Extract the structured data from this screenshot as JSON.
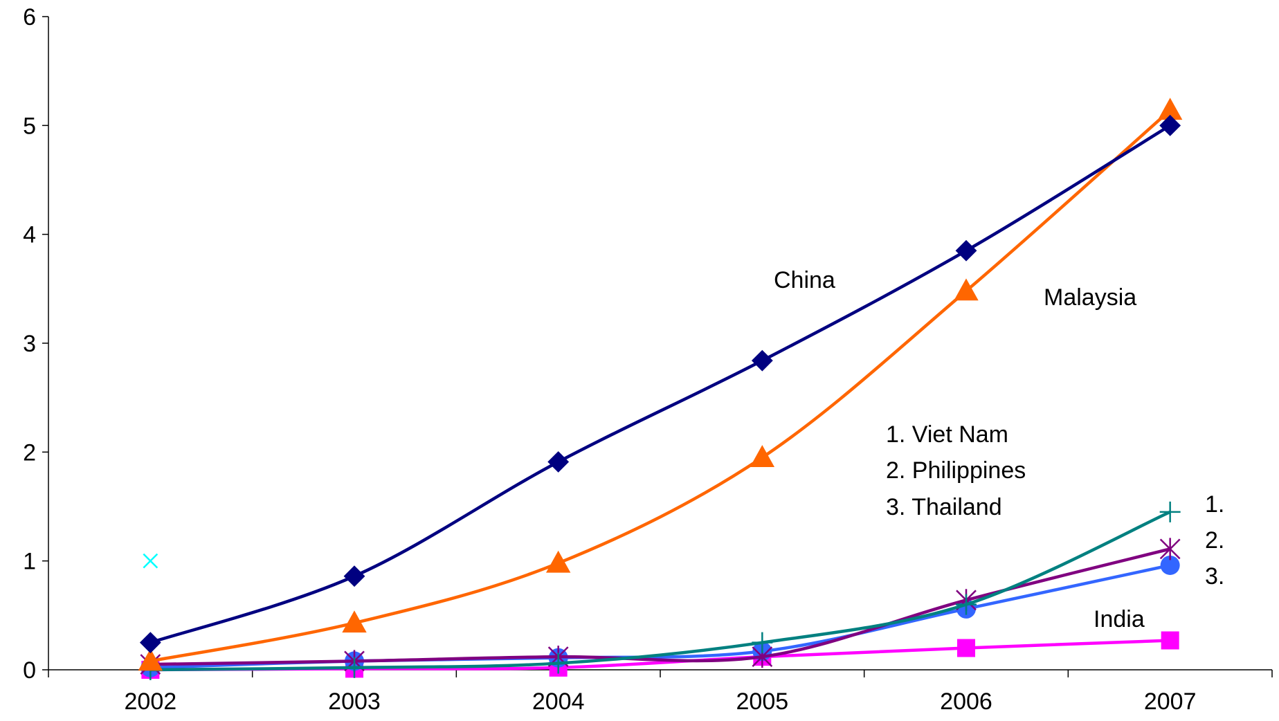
{
  "chart_data": {
    "type": "line",
    "title": "",
    "xlabel": "",
    "ylabel": "",
    "categories": [
      "2002",
      "2003",
      "2004",
      "2005",
      "2006",
      "2007"
    ],
    "ylim": [
      0,
      6
    ],
    "yticks": [
      "0",
      "1",
      "2",
      "3",
      "4",
      "5",
      "6"
    ],
    "grid": false,
    "legend": "none",
    "series": [
      {
        "name": "China",
        "color": "#000080",
        "marker": "diamond",
        "values": [
          0.25,
          0.86,
          1.91,
          2.84,
          3.85,
          5.0
        ]
      },
      {
        "name": "Malaysia",
        "color": "#FF6600",
        "marker": "triangle",
        "values": [
          0.08,
          0.43,
          0.98,
          1.95,
          3.48,
          5.14
        ]
      },
      {
        "name": "",
        "color": "#008080",
        "marker": "plus",
        "values": [
          0.0,
          0.02,
          0.06,
          0.25,
          0.6,
          1.45
        ]
      },
      {
        "name": "",
        "color": "#800080",
        "marker": "asterisk",
        "values": [
          0.05,
          0.08,
          0.12,
          0.12,
          0.64,
          1.11
        ]
      },
      {
        "name": "",
        "color": "#3366FF",
        "marker": "circle",
        "values": [
          0.02,
          0.08,
          0.11,
          0.17,
          0.56,
          0.96
        ]
      },
      {
        "name": "India",
        "color": "#FF00FF",
        "marker": "square",
        "values": [
          0.0,
          0.01,
          0.02,
          0.12,
          0.2,
          0.27
        ]
      }
    ],
    "stray_point": {
      "x": "2002",
      "y": 1.0,
      "color": "#00FFFF",
      "marker": "x"
    },
    "annotations": {
      "china": "China",
      "malaysia": "Malaysia",
      "india": "India",
      "list_1": "1. Viet Nam",
      "list_2": "2. Philippines",
      "list_3": "3. Thailand",
      "end_1": "1.",
      "end_2": "2.",
      "end_3": "3."
    }
  }
}
